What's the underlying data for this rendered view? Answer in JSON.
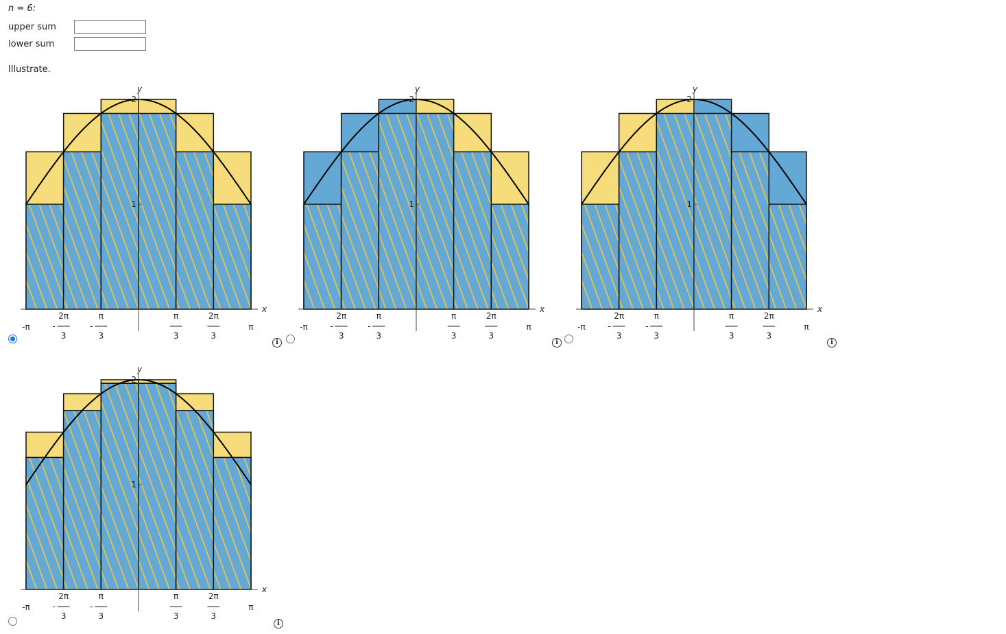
{
  "header": {
    "n_label": "n = 6:"
  },
  "inputs": [
    {
      "label": "upper sum"
    },
    {
      "label": "lower sum"
    }
  ],
  "prompt": "Illustrate.",
  "graphs": [
    {
      "axis_x": "x",
      "axis_y": "y",
      "y_ticks": [
        "1",
        "2"
      ],
      "x_ticks": [
        {
          "label": "-π"
        },
        {
          "sign": "-",
          "num": "2π",
          "den": "3"
        },
        {
          "sign": "-",
          "num": "π",
          "den": "3"
        },
        {
          "num": "π",
          "den": "3"
        },
        {
          "num": "2π",
          "den": "3"
        },
        {
          "label": "π"
        }
      ]
    },
    {
      "axis_x": "x",
      "axis_y": "y",
      "y_ticks": [
        "1",
        "2"
      ],
      "x_ticks": [
        {
          "label": "-π"
        },
        {
          "sign": "-",
          "num": "2π",
          "den": "3"
        },
        {
          "sign": "-",
          "num": "π",
          "den": "3"
        },
        {
          "num": "π",
          "den": "3"
        },
        {
          "num": "2π",
          "den": "3"
        },
        {
          "label": "π"
        }
      ]
    },
    {
      "axis_x": "x",
      "axis_y": "y",
      "y_ticks": [
        "1",
        "2"
      ],
      "x_ticks": [
        {
          "label": "-π"
        },
        {
          "sign": "-",
          "num": "2π",
          "den": "3"
        },
        {
          "sign": "-",
          "num": "π",
          "den": "3"
        },
        {
          "num": "π",
          "den": "3"
        },
        {
          "num": "2π",
          "den": "3"
        },
        {
          "label": "π"
        }
      ]
    },
    {
      "axis_x": "x",
      "axis_y": "y",
      "y_ticks": [
        "1",
        "2"
      ],
      "x_ticks": [
        {
          "label": "-π"
        },
        {
          "sign": "-",
          "num": "2π",
          "den": "3"
        },
        {
          "sign": "-",
          "num": "π",
          "den": "3"
        },
        {
          "num": "π",
          "den": "3"
        },
        {
          "num": "2π",
          "den": "3"
        },
        {
          "label": "π"
        }
      ]
    }
  ]
}
